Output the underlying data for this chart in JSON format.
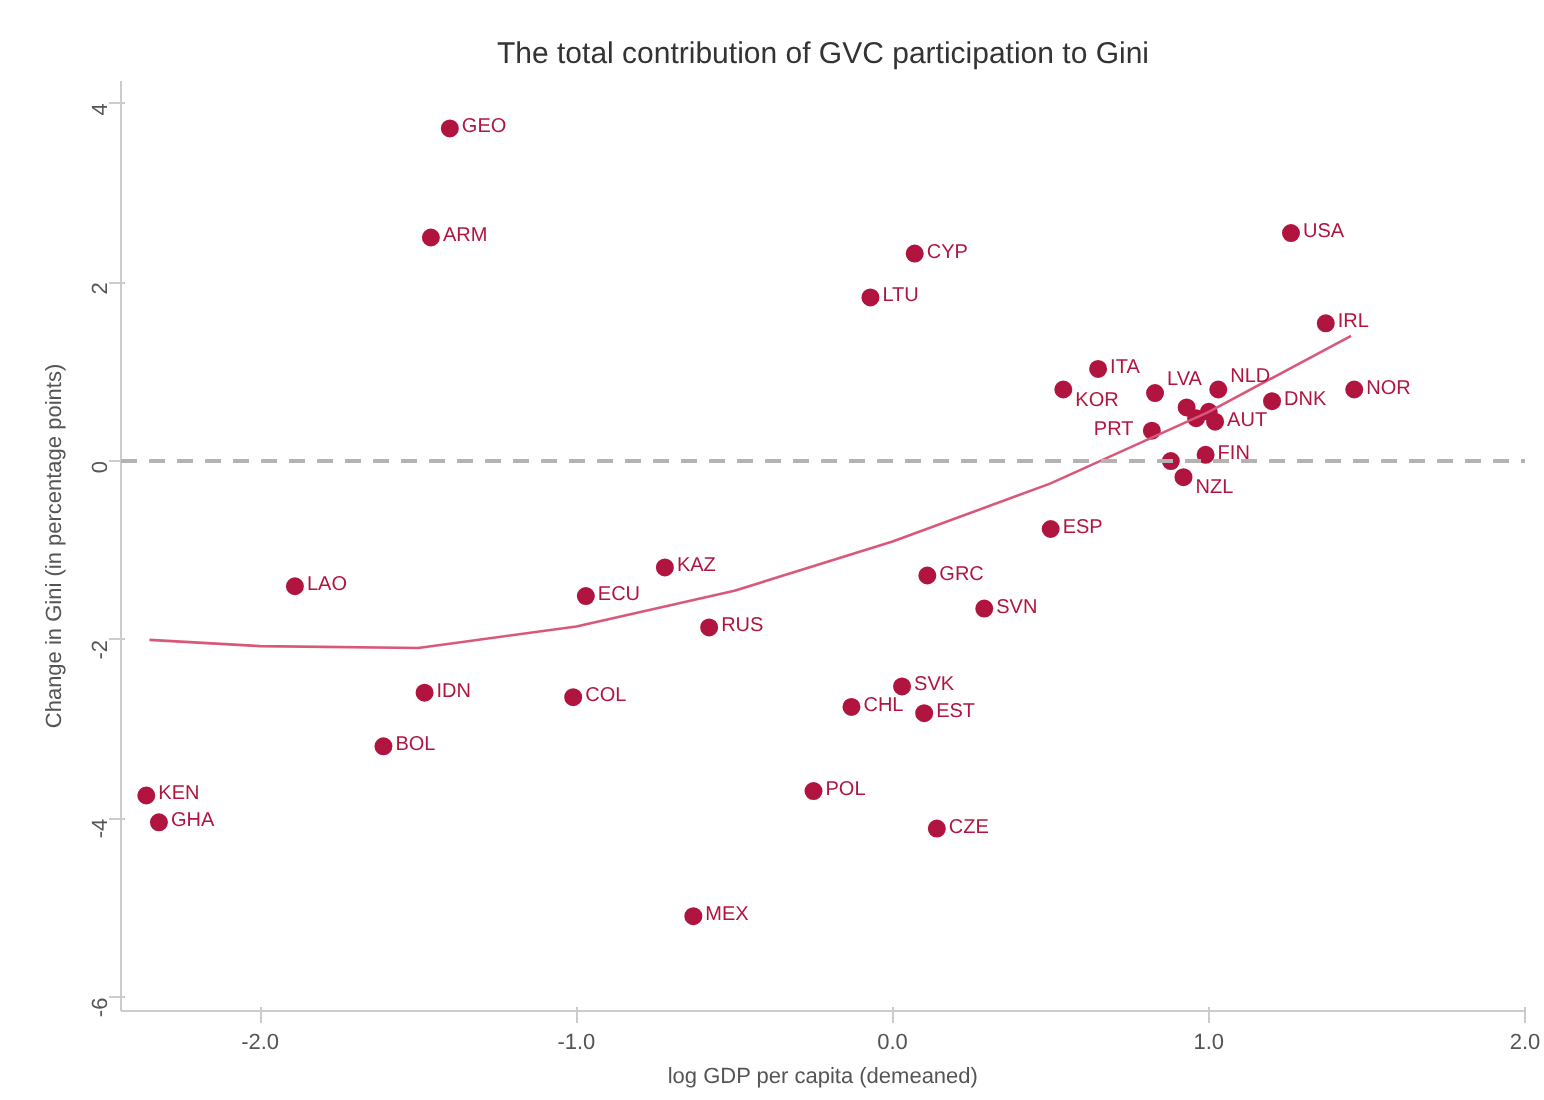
{
  "chart_data": {
    "type": "scatter",
    "title": "The total contribution of GVC participation to Gini",
    "xlabel": "log GDP per capita (demeaned)",
    "ylabel": "Change in Gini (in percentage points)",
    "xlim": [
      -2.44,
      2.0
    ],
    "ylim": [
      -6.15,
      4.25
    ],
    "xticks": [
      {
        "value": -2,
        "label": "-2.0"
      },
      {
        "value": -1,
        "label": "-1.0"
      },
      {
        "value": 0,
        "label": "0.0"
      },
      {
        "value": 1,
        "label": "1.0"
      },
      {
        "value": 2,
        "label": "2.0"
      }
    ],
    "yticks": [
      -6,
      -4,
      -2,
      0,
      2,
      4
    ],
    "grid": false,
    "marker": "circle",
    "ref_lines": [
      {
        "axis": "y",
        "value": 0,
        "label": null,
        "color": "#b3b3b3",
        "line_style": "dashed"
      }
    ],
    "series": [
      {
        "color": "#b0143f",
        "x": [
          -1.4,
          -1.46,
          0.07,
          -0.07,
          1.26,
          1.37,
          1.46,
          0.65,
          0.54,
          0.83,
          1.03,
          1.2,
          0.93,
          0.96,
          1.0,
          1.02,
          0.82,
          0.99,
          0.88,
          0.92,
          0.5,
          0.11,
          0.29,
          -1.89,
          -0.72,
          -0.97,
          -0.58,
          -1.48,
          -1.01,
          -1.61,
          -2.36,
          -2.32,
          0.03,
          -0.13,
          0.1,
          -0.25,
          0.14,
          -0.63
        ],
        "values": [
          3.72,
          2.5,
          2.32,
          1.83,
          2.55,
          1.54,
          0.8,
          1.03,
          0.8,
          0.76,
          0.8,
          0.67,
          0.6,
          0.48,
          0.55,
          0.44,
          0.34,
          0.07,
          0.0,
          -0.18,
          -0.76,
          -1.28,
          -1.65,
          -1.4,
          -1.19,
          -1.51,
          -1.86,
          -2.59,
          -2.64,
          -3.19,
          -3.74,
          -4.04,
          -2.52,
          -2.75,
          -2.82,
          -3.69,
          -4.11,
          -5.09
        ]
      },
      {
        "type": "line",
        "color": "#d9587a",
        "line_style": "solid",
        "marker": "none",
        "x": [
          -2.35,
          -2.0,
          -1.5,
          -1.0,
          -0.5,
          0.0,
          0.5,
          1.0,
          1.45
        ],
        "values": [
          -2.0,
          -2.07,
          -2.09,
          -1.85,
          -1.45,
          -0.9,
          -0.25,
          0.55,
          1.4
        ]
      }
    ],
    "annotations": [
      {
        "text": "GEO",
        "x": -1.4,
        "y": 3.72
      },
      {
        "text": "ARM",
        "x": -1.46,
        "y": 2.5
      },
      {
        "text": "CYP",
        "x": 0.07,
        "y": 2.32
      },
      {
        "text": "LTU",
        "x": -0.07,
        "y": 1.83
      },
      {
        "text": "USA",
        "x": 1.26,
        "y": 2.55
      },
      {
        "text": "IRL",
        "x": 1.37,
        "y": 1.54
      },
      {
        "text": "NOR",
        "x": 1.46,
        "y": 0.8
      },
      {
        "text": "ITA",
        "x": 0.65,
        "y": 1.03
      },
      {
        "text": "KOR",
        "x": 0.54,
        "y": 0.8
      },
      {
        "text": "LVA",
        "x": 0.83,
        "y": 0.76
      },
      {
        "text": "NLD",
        "x": 1.03,
        "y": 0.8
      },
      {
        "text": "DNK",
        "x": 1.2,
        "y": 0.67
      },
      {
        "text": "AUT",
        "x": 1.02,
        "y": 0.44
      },
      {
        "text": "PRT",
        "x": 0.82,
        "y": 0.34
      },
      {
        "text": "FIN",
        "x": 0.99,
        "y": 0.07
      },
      {
        "text": "NZL",
        "x": 0.92,
        "y": -0.18
      },
      {
        "text": "ESP",
        "x": 0.5,
        "y": -0.76
      },
      {
        "text": "GRC",
        "x": 0.11,
        "y": -1.28
      },
      {
        "text": "SVN",
        "x": 0.29,
        "y": -1.65
      },
      {
        "text": "LAO",
        "x": -1.89,
        "y": -1.4
      },
      {
        "text": "KAZ",
        "x": -0.72,
        "y": -1.19
      },
      {
        "text": "ECU",
        "x": -0.97,
        "y": -1.51
      },
      {
        "text": "RUS",
        "x": -0.58,
        "y": -1.86
      },
      {
        "text": "IDN",
        "x": -1.48,
        "y": -2.59
      },
      {
        "text": "COL",
        "x": -1.01,
        "y": -2.64
      },
      {
        "text": "BOL",
        "x": -1.61,
        "y": -3.19
      },
      {
        "text": "KEN",
        "x": -2.36,
        "y": -3.74
      },
      {
        "text": "GHA",
        "x": -2.32,
        "y": -4.04
      },
      {
        "text": "SVK",
        "x": 0.03,
        "y": -2.52
      },
      {
        "text": "CHL",
        "x": -0.13,
        "y": -2.75
      },
      {
        "text": "EST",
        "x": 0.1,
        "y": -2.82
      },
      {
        "text": "POL",
        "x": -0.25,
        "y": -3.69
      },
      {
        "text": "CZE",
        "x": 0.14,
        "y": -4.11
      },
      {
        "text": "MEX",
        "x": -0.63,
        "y": -5.09
      }
    ]
  }
}
